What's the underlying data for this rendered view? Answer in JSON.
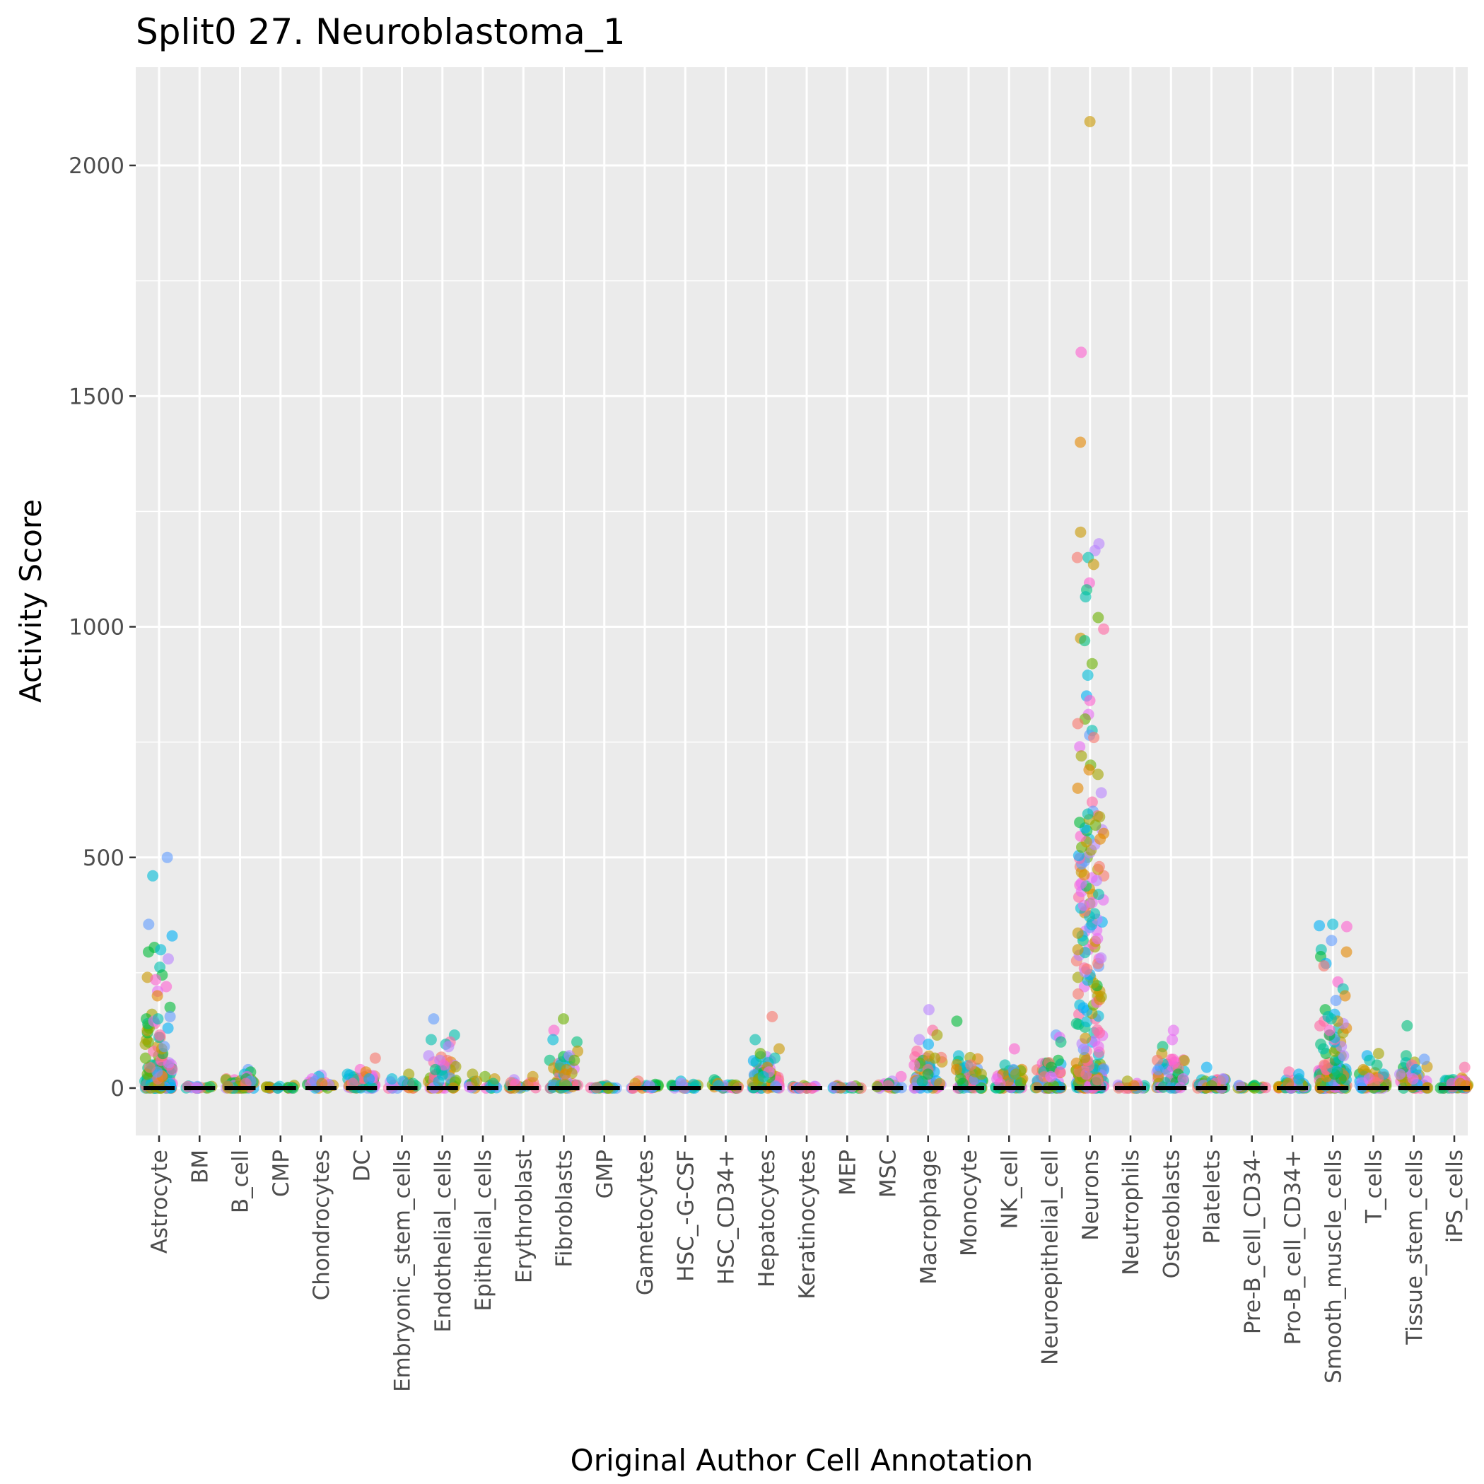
{
  "chart_data": {
    "type": "scatter",
    "subtype": "jitter-strip",
    "title": "Split0 27. Neuroblastoma_1",
    "xlabel": "Original Author Cell Annotation",
    "ylabel": "Activity Score",
    "ylim": [
      -110,
      2200
    ],
    "yticks": [
      0,
      500,
      1000,
      1500,
      2000
    ],
    "grid": true,
    "legend": "none",
    "categories": [
      "Astrocyte",
      "BM",
      "B_cell",
      "CMP",
      "Chondrocytes",
      "DC",
      "Embryonic_stem_cells",
      "Endothelial_cells",
      "Epithelial_cells",
      "Erythroblast",
      "Fibroblasts",
      "GMP",
      "Gametocytes",
      "HSC_-G-CSF",
      "HSC_CD34+",
      "Hepatocytes",
      "Keratinocytes",
      "MEP",
      "MSC",
      "Macrophage",
      "Monocyte",
      "NK_cell",
      "Neuroepithelial_cell",
      "Neurons",
      "Neutrophils",
      "Osteoblasts",
      "Platelets",
      "Pre-B_cell_CD34-",
      "Pro-B_cell_CD34+",
      "Smooth_muscle_cells",
      "T_cells",
      "Tissue_stem_cells",
      "iPS_cells"
    ],
    "medians": [
      0,
      0,
      0,
      0,
      0,
      0,
      0,
      0,
      0,
      0,
      0,
      0,
      0,
      0,
      0,
      0,
      0,
      0,
      0,
      0,
      0,
      0,
      0,
      0,
      0,
      0,
      0,
      0,
      0,
      0,
      0,
      0,
      0
    ],
    "groups": [
      {
        "category": "Astrocyte",
        "max": 500,
        "points": [
          500,
          460,
          355,
          330,
          305,
          300,
          295,
          280,
          262,
          245,
          240,
          235,
          220,
          210,
          200,
          175,
          160,
          150,
          140,
          130,
          110,
          90,
          70,
          50
        ]
      },
      {
        "category": "BM",
        "max": 0,
        "points": [
          0
        ]
      },
      {
        "category": "B_cell",
        "max": 40,
        "points": [
          40,
          35,
          30,
          25,
          20,
          15,
          10
        ]
      },
      {
        "category": "CMP",
        "max": 0,
        "points": [
          0,
          0
        ]
      },
      {
        "category": "Chondrocytes",
        "max": 28,
        "points": [
          28,
          25,
          20,
          15,
          10
        ]
      },
      {
        "category": "DC",
        "max": 65,
        "points": [
          65,
          40,
          35,
          30,
          20,
          10
        ]
      },
      {
        "category": "Embryonic_stem_cells",
        "max": 30,
        "points": [
          30,
          20,
          15,
          10
        ]
      },
      {
        "category": "Endothelial_cells",
        "max": 150,
        "points": [
          150,
          115,
          105,
          100,
          95,
          90,
          70,
          60,
          50,
          40
        ]
      },
      {
        "category": "Epithelial_cells",
        "max": 30,
        "points": [
          30,
          25,
          20,
          15,
          10
        ]
      },
      {
        "category": "Erythroblast",
        "max": 25,
        "points": [
          25,
          18,
          12,
          8
        ]
      },
      {
        "category": "Fibroblasts",
        "max": 150,
        "points": [
          150,
          125,
          105,
          100,
          80,
          70,
          60,
          50,
          40,
          30
        ]
      },
      {
        "category": "GMP",
        "max": 2,
        "points": [
          2,
          1,
          1,
          0
        ]
      },
      {
        "category": "Gametocytes",
        "max": 15,
        "points": [
          15,
          10,
          8,
          5
        ]
      },
      {
        "category": "HSC_-G-CSF",
        "max": 15,
        "points": [
          15,
          10,
          8,
          5
        ]
      },
      {
        "category": "HSC_CD34+",
        "max": 18,
        "points": [
          18,
          15,
          10,
          5
        ]
      },
      {
        "category": "Hepatocytes",
        "max": 155,
        "points": [
          155,
          105,
          85,
          75,
          65,
          55,
          45,
          35,
          25
        ]
      },
      {
        "category": "Keratinocytes",
        "max": 0,
        "points": [
          0
        ]
      },
      {
        "category": "MEP",
        "max": 3,
        "points": [
          3,
          2,
          1
        ]
      },
      {
        "category": "MSC",
        "max": 25,
        "points": [
          25,
          15,
          10,
          5
        ]
      },
      {
        "category": "Macrophage",
        "max": 170,
        "points": [
          170,
          125,
          115,
          105,
          95,
          80,
          65,
          50,
          40,
          30
        ]
      },
      {
        "category": "Monocyte",
        "max": 145,
        "points": [
          145,
          50,
          40,
          30,
          20,
          10
        ]
      },
      {
        "category": "NK_cell",
        "max": 85,
        "points": [
          85,
          50,
          40,
          30,
          20,
          10
        ]
      },
      {
        "category": "Neuroepithelial_cell",
        "max": 115,
        "points": [
          115,
          110,
          100,
          60,
          55,
          45,
          35,
          25
        ]
      },
      {
        "category": "Neurons",
        "max": 2095,
        "points": [
          2095,
          1595,
          1400,
          1205,
          1180,
          1165,
          1150,
          1150,
          1135,
          1095,
          1080,
          1065,
          1020,
          995,
          975,
          970,
          920,
          895,
          850,
          840,
          810,
          800,
          790,
          775,
          765,
          760,
          740,
          720,
          700,
          690,
          680,
          650,
          640,
          620,
          600,
          590,
          560,
          540,
          500,
          480,
          460,
          440,
          420,
          400,
          380,
          360,
          340,
          320,
          300,
          280,
          260,
          240,
          220,
          200,
          180,
          160,
          140,
          120,
          100,
          80,
          60,
          40,
          20
        ]
      },
      {
        "category": "Neutrophils",
        "max": 15,
        "points": [
          15,
          10,
          5
        ]
      },
      {
        "category": "Osteoblasts",
        "max": 125,
        "points": [
          125,
          105,
          90,
          75,
          60,
          40,
          30,
          20
        ]
      },
      {
        "category": "Platelets",
        "max": 45,
        "points": [
          45,
          20,
          15,
          10,
          5
        ]
      },
      {
        "category": "Pre-B_cell_CD34-",
        "max": 0,
        "points": [
          0
        ]
      },
      {
        "category": "Pro-B_cell_CD34+",
        "max": 35,
        "points": [
          35,
          30,
          20,
          10
        ]
      },
      {
        "category": "Smooth_muscle_cells",
        "max": 355,
        "points": [
          355,
          352,
          350,
          320,
          300,
          295,
          285,
          270,
          265,
          230,
          215,
          200,
          190,
          170,
          160,
          145,
          130,
          115,
          100,
          85,
          70,
          55,
          40
        ]
      },
      {
        "category": "T_cells",
        "max": 75,
        "points": [
          75,
          70,
          60,
          50,
          40,
          30,
          20
        ]
      },
      {
        "category": "Tissue_stem_cells",
        "max": 135,
        "points": [
          135,
          70,
          55,
          50,
          40,
          30,
          20
        ]
      },
      {
        "category": "iPS_cells",
        "max": 45,
        "points": [
          45,
          15,
          10,
          5
        ]
      }
    ],
    "point_colors": [
      "#F8766D",
      "#E58700",
      "#C99800",
      "#A3A500",
      "#6BB100",
      "#00BA38",
      "#00BF7D",
      "#00C0AF",
      "#00BCD8",
      "#00B0F6",
      "#619CFF",
      "#B983FF",
      "#E76BF3",
      "#FD61D1",
      "#FF67A4"
    ]
  }
}
